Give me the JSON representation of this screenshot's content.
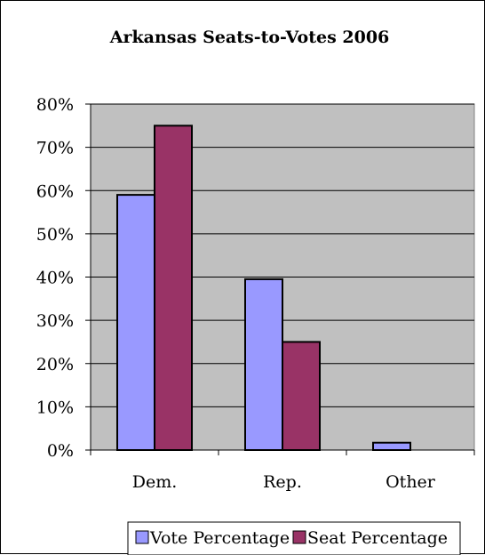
{
  "chart_data": {
    "type": "bar",
    "title": "Arkansas Seats-to-Votes 2006",
    "categories": [
      "Dem.",
      "Rep.",
      "Other"
    ],
    "series": [
      {
        "name": "Vote Percentage",
        "values": [
          0.59,
          0.395,
          0.017
        ],
        "color": "#9999ff"
      },
      {
        "name": "Seat Percentage",
        "values": [
          0.75,
          0.25,
          0.0
        ],
        "color": "#993366"
      }
    ],
    "yticks": [
      "0%",
      "10%",
      "20%",
      "30%",
      "40%",
      "50%",
      "60%",
      "70%",
      "80%"
    ],
    "ylim": [
      0,
      0.8
    ],
    "grid": true,
    "plot_background": "#c0c0c0",
    "legend_position": "bottom"
  }
}
